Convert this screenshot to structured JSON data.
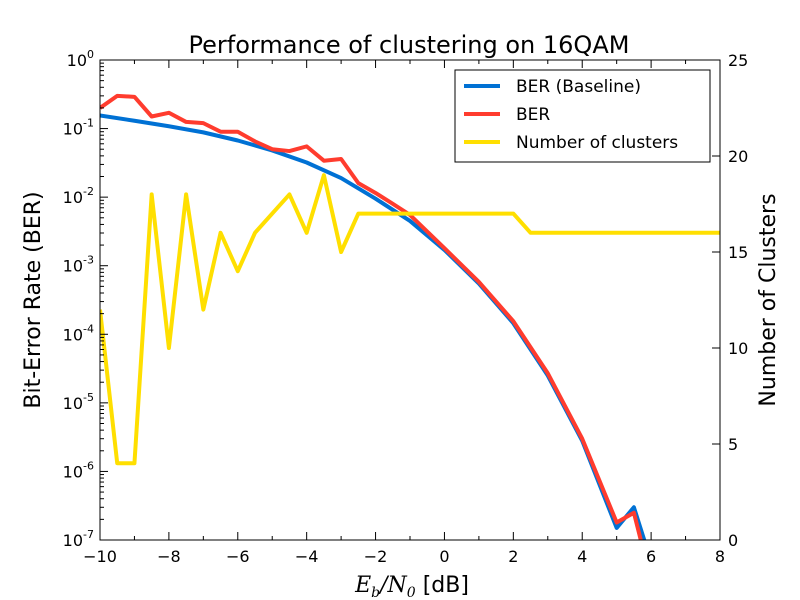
{
  "chart_data": {
    "type": "line",
    "title": "Performance of clustering on 16QAM",
    "xlabel": {
      "var": "E",
      "var_sub": "b",
      "sep": "/",
      "var2": "N",
      "var2_sub": "0",
      "unit": " [dB]"
    },
    "ylabel": "Bit-Error Rate (BER)",
    "y2label": "Number of Clusters",
    "xlim": [
      -10,
      8
    ],
    "ylim": [
      1e-07,
      1
    ],
    "yscale": "log",
    "y2lim": [
      0,
      25
    ],
    "xticks": [
      "−10",
      "−8",
      "−6",
      "−4",
      "−2",
      "0",
      "2",
      "4",
      "6",
      "8"
    ],
    "yticks": [
      {
        "base": "10",
        "exp": "-7"
      },
      {
        "base": "10",
        "exp": "-6"
      },
      {
        "base": "10",
        "exp": "-5"
      },
      {
        "base": "10",
        "exp": "-4"
      },
      {
        "base": "10",
        "exp": "-3"
      },
      {
        "base": "10",
        "exp": "-2"
      },
      {
        "base": "10",
        "exp": "-1"
      },
      {
        "base": "10",
        "exp": "0"
      }
    ],
    "y2ticks": [
      "0",
      "5",
      "10",
      "15",
      "20",
      "25"
    ],
    "grid": false,
    "legend_position": "top-right",
    "series": [
      {
        "name": "BER (Baseline)",
        "color": "#0071d4",
        "axis": "left",
        "x": [
          -10,
          -9,
          -8,
          -7,
          -6,
          -5,
          -4,
          -3,
          -2,
          -1,
          0,
          1,
          2,
          3,
          4,
          5,
          5.5,
          5.8
        ],
        "y": [
          0.155,
          0.13,
          0.108,
          0.088,
          0.067,
          0.048,
          0.032,
          0.019,
          0.0095,
          0.0045,
          0.0017,
          0.00055,
          0.000145,
          2.5e-05,
          2.8e-06,
          1.5e-07,
          3e-07,
          1e-07
        ]
      },
      {
        "name": "BER",
        "color": "#ff3c2e",
        "axis": "left",
        "x": [
          -10,
          -9.5,
          -9,
          -8.5,
          -8,
          -7.5,
          -7,
          -6.5,
          -6,
          -5.5,
          -5,
          -4.5,
          -4,
          -3.5,
          -3,
          -2.5,
          -2,
          -1.5,
          -1,
          0,
          1,
          2,
          3,
          4,
          5,
          5.5,
          5.7
        ],
        "y": [
          0.2,
          0.3,
          0.29,
          0.15,
          0.17,
          0.125,
          0.12,
          0.09,
          0.09,
          0.065,
          0.05,
          0.047,
          0.055,
          0.034,
          0.036,
          0.016,
          0.0115,
          0.008,
          0.0055,
          0.0018,
          0.00058,
          0.000155,
          2.7e-05,
          3e-06,
          1.8e-07,
          2.5e-07,
          1e-07
        ]
      },
      {
        "name": "Number of clusters",
        "color": "#ffdf00",
        "axis": "right",
        "x": [
          -10,
          -9.5,
          -9,
          -8.5,
          -8,
          -7.5,
          -7,
          -6.5,
          -6,
          -5.5,
          -5,
          -4.5,
          -4,
          -3.5,
          -3,
          -2.5,
          -2,
          -1.5,
          -1,
          -0.5,
          0,
          0.5,
          1,
          1.5,
          2,
          2.5,
          3,
          4,
          5,
          6,
          7,
          8
        ],
        "y": [
          12,
          4,
          4,
          18,
          10,
          18,
          12,
          16,
          14,
          16,
          17,
          18,
          16,
          19,
          15,
          17,
          17,
          17,
          17,
          17,
          17,
          17,
          17,
          17,
          17,
          16,
          16,
          16,
          16,
          16,
          16,
          16
        ]
      }
    ]
  }
}
